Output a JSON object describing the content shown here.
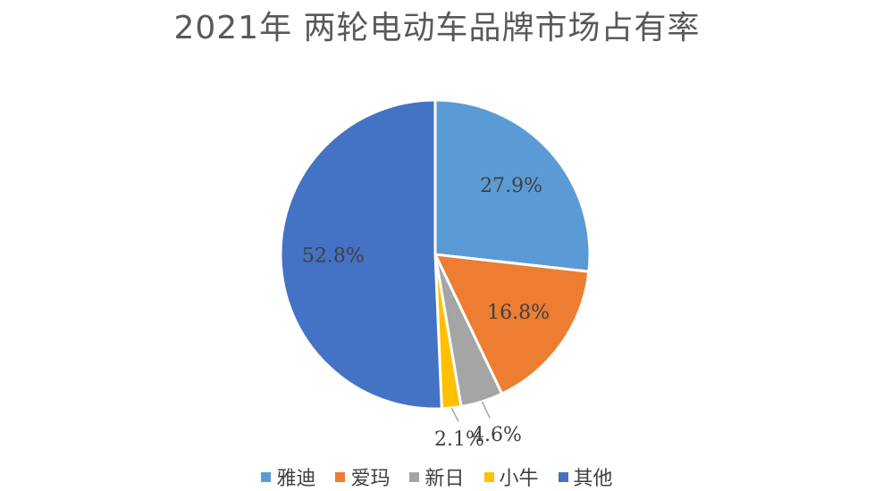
{
  "chart_data": {
    "type": "pie",
    "title": "2021年 两轮电动车品牌市场占有率",
    "slices": [
      {
        "name": "雅迪",
        "value": 27.9,
        "label": "27.9%",
        "color": "#5B9BD5"
      },
      {
        "name": "爱玛",
        "value": 16.8,
        "label": "16.8%",
        "color": "#ED7D31"
      },
      {
        "name": "新日",
        "value": 4.6,
        "label": "4.6%",
        "color": "#A5A5A5"
      },
      {
        "name": "小牛",
        "value": 2.1,
        "label": "2.1%",
        "color": "#FFC000"
      },
      {
        "name": "其他",
        "value": 52.8,
        "label": "52.8%",
        "color": "#4472C4"
      }
    ],
    "legend_position": "bottom"
  }
}
